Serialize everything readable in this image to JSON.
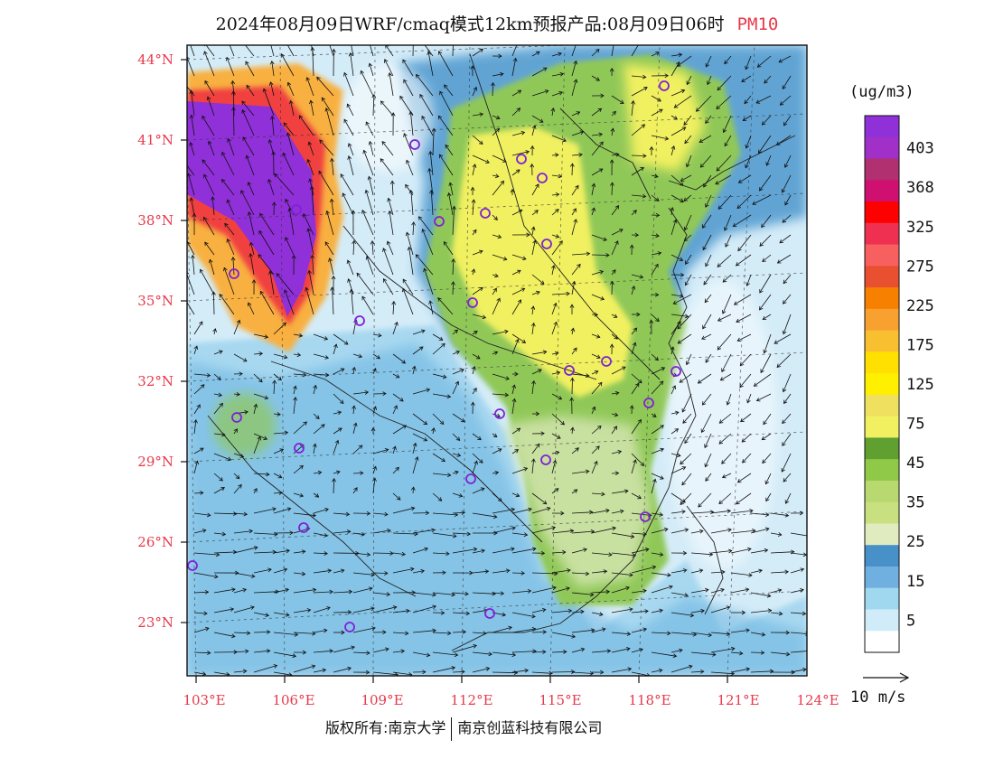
{
  "title": {
    "main": "2024年08月09日WRF/cmaq模式12km预报产品:08月09日06时",
    "variable": "PM10"
  },
  "map": {
    "lat_labels": [
      "44°N",
      "41°N",
      "38°N",
      "35°N",
      "32°N",
      "29°N",
      "26°N",
      "23°N"
    ],
    "lon_labels": [
      "103°E",
      "106°E",
      "109°E",
      "112°E",
      "115°E",
      "118°E",
      "121°E",
      "124°E"
    ],
    "colors": {
      "background": "#d4ecf8",
      "light": "#a8d8f0",
      "mid": "#6ab4e0",
      "dark": "#3a8cc8",
      "green_light": "#c8e0a0",
      "green": "#90c858",
      "yellow": "#f0f060",
      "orange": "#f8b040",
      "red": "#f04040",
      "purple": "#9030d8"
    }
  },
  "colorbar": {
    "units": "(ug/m3)",
    "labels": [
      "403",
      "368",
      "325",
      "275",
      "225",
      "175",
      "125",
      "75",
      "45",
      "35",
      "25",
      "15",
      "5"
    ],
    "colors": [
      "#9030d8",
      "#a030c8",
      "#b03070",
      "#d01070",
      "#ff0000",
      "#f03050",
      "#f86060",
      "#e85030",
      "#f88000",
      "#f8a030",
      "#f8c030",
      "#ffe000",
      "#fff000",
      "#f0e060",
      "#f0f060",
      "#60a030",
      "#90c848",
      "#b8d870",
      "#c8e080",
      "#e0ecc0",
      "#4890c8",
      "#70b0e0",
      "#a0d8f0",
      "#d0ecf8",
      "#ffffff"
    ]
  },
  "wind_reference": {
    "label": "10 m/s"
  },
  "footer": {
    "left": "版权所有:南京大学",
    "right": "南京创蓝科技有限公司"
  }
}
